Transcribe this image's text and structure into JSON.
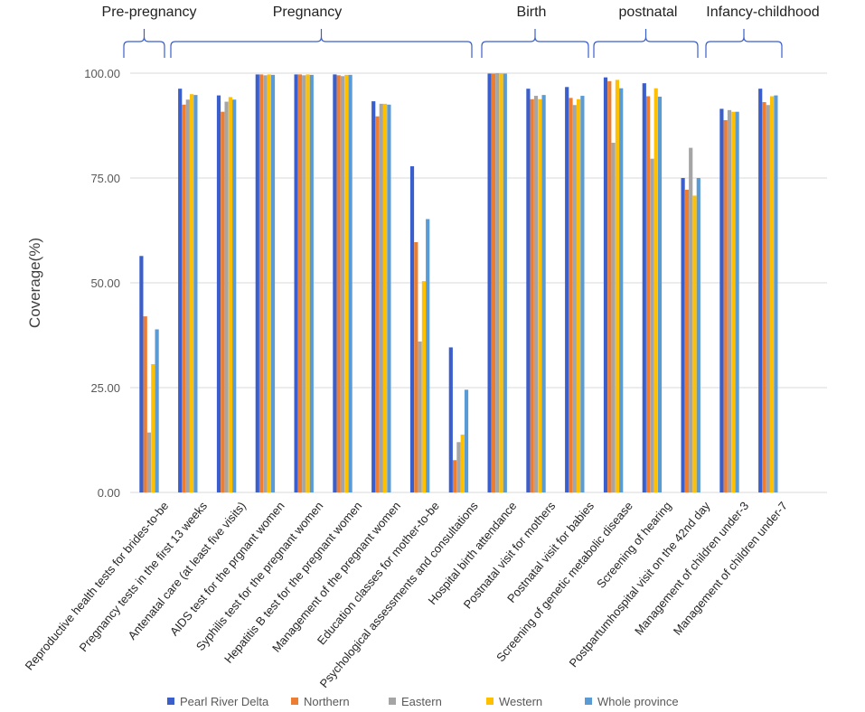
{
  "chart_data": {
    "type": "bar",
    "title": "",
    "xlabel": "",
    "ylabel": "Coverage(%)",
    "ylim": [
      0,
      100
    ],
    "yticks": [
      "0.00",
      "25.00",
      "50.00",
      "75.00",
      "100.00"
    ],
    "grid": true,
    "legend_position": "bottom",
    "categories": [
      "Reproductive health tests for brides-to-be",
      "Pregnancy tests in the first 13 weeks",
      "Antenatal care (at least five visits)",
      "AIDS test for the prgnant women",
      "Syphilis test for the pregnant women",
      "Hepatitis B test for the pregnant women",
      "Management of the pregnant women",
      "Education classes for mother-to-be",
      "Psychological assessments and consultations",
      "Hospital birth attendance",
      "Postnatal visit for  mothers",
      "Postnatal visit for babies",
      "Screening of genetic metabolic disease",
      "Screening of hearing",
      "Postpartumhospital visit on the 42nd  day",
      "Management of children under-3",
      "Management of children under-7"
    ],
    "series": [
      {
        "name": "Pearl River Delta",
        "color": "#3a5fcd",
        "values": [
          56.4,
          96.3,
          94.7,
          99.7,
          99.7,
          99.7,
          93.3,
          77.8,
          34.6,
          99.9,
          96.3,
          96.7,
          99.0,
          97.6,
          75.0,
          91.5,
          96.3
        ]
      },
      {
        "name": "Northern",
        "color": "#ed7d31",
        "values": [
          42.0,
          92.5,
          90.8,
          99.7,
          99.7,
          99.5,
          89.7,
          59.7,
          7.7,
          99.9,
          93.8,
          94.1,
          98.1,
          94.5,
          72.2,
          88.8,
          93.1
        ]
      },
      {
        "name": "Eastern",
        "color": "#a5a5a5",
        "values": [
          14.3,
          93.7,
          93.2,
          99.5,
          99.5,
          99.3,
          92.7,
          36.0,
          12.0,
          100.0,
          94.6,
          92.4,
          83.4,
          79.6,
          82.2,
          91.2,
          92.4
        ]
      },
      {
        "name": "Western",
        "color": "#ffc000",
        "values": [
          30.6,
          95.0,
          94.3,
          99.7,
          99.7,
          99.6,
          92.7,
          50.4,
          13.8,
          100.0,
          93.8,
          93.8,
          98.4,
          96.4,
          70.8,
          90.8,
          94.5
        ]
      },
      {
        "name": "Whole province",
        "color": "#5b9bd5",
        "values": [
          38.9,
          94.8,
          93.7,
          99.6,
          99.6,
          99.6,
          92.5,
          65.2,
          24.5,
          99.9,
          94.8,
          94.6,
          96.4,
          94.4,
          75.0,
          90.8,
          94.7
        ]
      }
    ],
    "groups": [
      {
        "label": "Pre-pregnancy"
      },
      {
        "label": "Pregnancy"
      },
      {
        "label": "Birth"
      },
      {
        "label": "postnatal"
      },
      {
        "label": "Infancy-childhood"
      }
    ]
  },
  "colors": {
    "grid": "#d9d9d9",
    "axis_text": "#595959",
    "bracket": "#3a5fcd",
    "title_text": "#222222"
  }
}
